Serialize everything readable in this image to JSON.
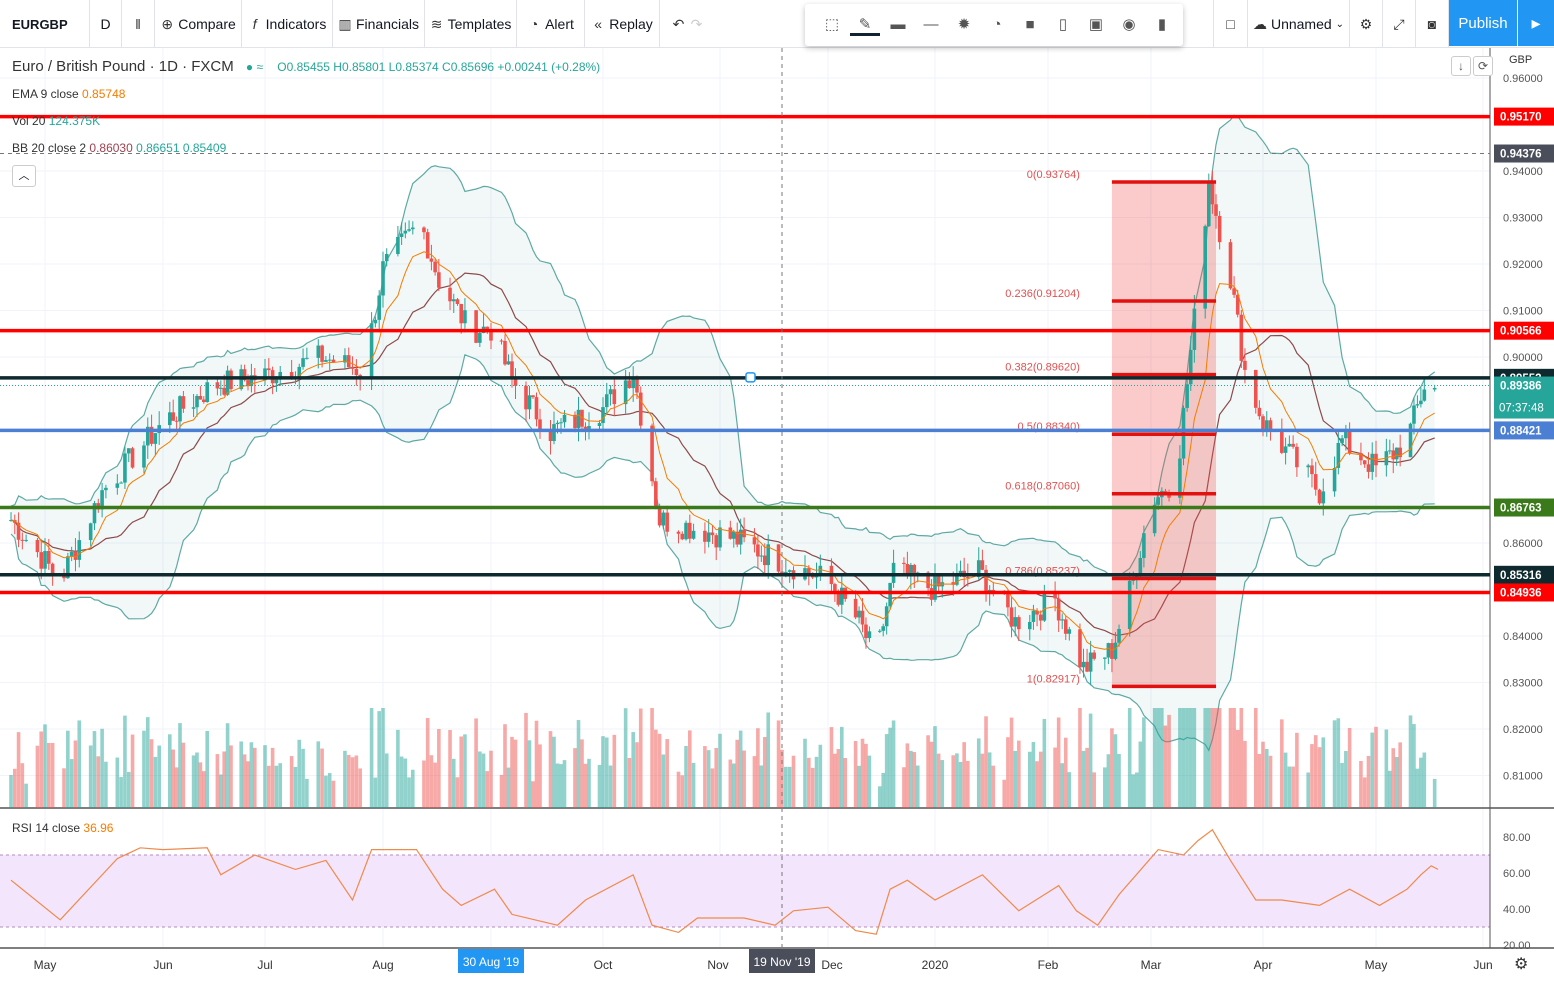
{
  "toolbar": {
    "symbol": "EURGBP",
    "interval": "D",
    "compare": "Compare",
    "indicators": "Indicators",
    "financials": "Financials",
    "templates": "Templates",
    "alert": "Alert",
    "replay": "Replay",
    "layout_name": "Unnamed",
    "publish": "Publish"
  },
  "drawing_toolbar": {
    "icons": [
      "select-icon",
      "pencil-icon",
      "line-weight-icon",
      "line-style-icon",
      "settings-icon",
      "alert-add-icon",
      "fill-icon",
      "template-icon",
      "lock-icon",
      "eye-icon",
      "trash-icon"
    ]
  },
  "legend": {
    "title": "Euro / British Pound · 1D · FXCM",
    "ohlc": "O0.85455 H0.85801 L0.85374 C0.85696 +0.00241 (+0.28%)",
    "ema_label": "EMA 9 close",
    "ema_value": "0.85748",
    "vol_label": "Vol 20",
    "vol_value": "124.375K",
    "bb_label": "BB 20 close 2",
    "bb_basis": "0.86030",
    "bb_upper": "0.86651",
    "bb_lower": "0.85409",
    "rsi_label": "RSI 14 close",
    "rsi_value": "36.96"
  },
  "price_axis": {
    "currency": "GBP"
  },
  "colors": {
    "up": "#26a69a",
    "down": "#ef5350",
    "accent": "#2196f3",
    "ema": "#f57c00",
    "basis": "#8d4a4a",
    "band": "#5ea9a4",
    "rsi": "#f08a4b"
  },
  "chart_data": [
    {
      "type": "candlestick",
      "title": "Euro / British Pound · 1D · FXCM",
      "ylim": [
        0.805,
        0.965
      ],
      "y_ticks": [
        "0.96000",
        "0.94000",
        "0.93000",
        "0.92000",
        "0.91000",
        "0.90000",
        "0.86000",
        "0.84000",
        "0.83000",
        "0.82000",
        "0.81000"
      ],
      "x_ticks": [
        "May",
        "Jun",
        "Jul",
        "Aug",
        "Oct",
        "Nov",
        "Dec",
        "2020",
        "Feb",
        "Mar",
        "Apr",
        "May",
        "Jun"
      ],
      "x_highlight": [
        "30 Aug '19",
        "19 Nov '19"
      ],
      "grid": true,
      "approx_close": [
        [
          "2019-04-22",
          0.865
        ],
        [
          "2019-05-05",
          0.852
        ],
        [
          "2019-05-16",
          0.871
        ],
        [
          "2019-06-01",
          0.886
        ],
        [
          "2019-06-16",
          0.894
        ],
        [
          "2019-07-01",
          0.896
        ],
        [
          "2019-07-16",
          0.9
        ],
        [
          "2019-07-27",
          0.897
        ],
        [
          "2019-08-01",
          0.919
        ],
        [
          "2019-08-11",
          0.929
        ],
        [
          "2019-08-16",
          0.9166
        ],
        [
          "2019-08-24",
          0.906
        ],
        [
          "2019-08-30",
          0.906
        ],
        [
          "2019-09-05",
          0.895
        ],
        [
          "2019-09-16",
          0.884
        ],
        [
          "2019-10-01",
          0.889
        ],
        [
          "2019-10-09",
          0.897
        ],
        [
          "2019-10-16",
          0.865
        ],
        [
          "2019-10-26",
          0.863
        ],
        [
          "2019-11-05",
          0.861
        ],
        [
          "2019-11-19",
          0.856
        ],
        [
          "2019-12-01",
          0.852
        ],
        [
          "2019-12-10",
          0.843
        ],
        [
          "2019-12-15",
          0.835
        ],
        [
          "2019-12-20",
          0.854
        ],
        [
          "2020-01-01",
          0.85
        ],
        [
          "2020-01-13",
          0.854
        ],
        [
          "2020-01-23",
          0.843
        ],
        [
          "2020-02-03",
          0.848
        ],
        [
          "2020-02-11",
          0.833
        ],
        [
          "2020-02-19",
          0.837
        ],
        [
          "2020-02-25",
          0.852
        ],
        [
          "2020-03-01",
          0.869
        ],
        [
          "2020-03-08",
          0.874
        ],
        [
          "2020-03-13",
          0.908
        ],
        [
          "2020-03-17",
          0.938
        ],
        [
          "2020-03-23",
          0.917
        ],
        [
          "2020-03-27",
          0.897
        ],
        [
          "2020-04-01",
          0.886
        ],
        [
          "2020-04-11",
          0.876
        ],
        [
          "2020-04-16",
          0.871
        ],
        [
          "2020-04-22",
          0.882
        ],
        [
          "2020-05-01",
          0.876
        ],
        [
          "2020-05-10",
          0.882
        ],
        [
          "2020-05-15",
          0.894
        ],
        [
          "2020-05-18",
          0.893
        ]
      ],
      "horizontal_lines": [
        {
          "price": 0.9517,
          "label": "0.95170",
          "color": "#ff0000"
        },
        {
          "price": 0.90566,
          "label": "0.90566",
          "color": "#ff0000"
        },
        {
          "price": 0.89552,
          "label": "0.89552",
          "color": "#0f2a2e"
        },
        {
          "price": 0.88421,
          "label": "0.88421",
          "color": "#4a7fd4"
        },
        {
          "price": 0.86763,
          "label": "0.86763",
          "color": "#3a7a1a"
        },
        {
          "price": 0.85316,
          "label": "0.85316",
          "color": "#0f2a2e"
        },
        {
          "price": 0.84936,
          "label": "0.84936",
          "color": "#ff0000"
        }
      ],
      "crosshair": {
        "price": 0.94376,
        "label": "0.94376",
        "date": "19 Nov '19"
      },
      "last_price": {
        "label": "0.89386",
        "countdown": "07:37:48"
      },
      "fibonacci": {
        "from": "2020-02-19",
        "to": "2020-03-19",
        "levels": [
          {
            "ratio": "0",
            "price": 0.93764,
            "label": "0(0.93764)"
          },
          {
            "ratio": "0.236",
            "price": 0.91204,
            "label": "0.236(0.91204)"
          },
          {
            "ratio": "0.382",
            "price": 0.8962,
            "label": "0.382(0.89620)"
          },
          {
            "ratio": "0.5",
            "price": 0.8834,
            "label": "0.5(0.88340)"
          },
          {
            "ratio": "0.618",
            "price": 0.8706,
            "label": "0.618(0.87060)"
          },
          {
            "ratio": "0.786",
            "price": 0.85237,
            "label": "0.786(0.85237)"
          },
          {
            "ratio": "1",
            "price": 0.82917,
            "label": "1(0.82917)"
          }
        ]
      },
      "indicators": [
        "EMA 9",
        "Bollinger Bands 20 2",
        "Volume 20"
      ]
    },
    {
      "type": "line",
      "title": "RSI 14 close",
      "ylim": [
        20,
        90
      ],
      "y_ticks": [
        "80.00",
        "60.00",
        "40.00",
        "20.00"
      ],
      "bands": [
        30,
        70
      ],
      "values": [
        [
          "2019-04-22",
          56
        ],
        [
          "2019-05-05",
          34
        ],
        [
          "2019-05-20",
          68
        ],
        [
          "2019-05-26",
          74
        ],
        [
          "2019-06-01",
          73
        ],
        [
          "2019-06-14",
          74
        ],
        [
          "2019-06-18",
          59
        ],
        [
          "2019-06-28",
          70
        ],
        [
          "2019-07-09",
          62
        ],
        [
          "2019-07-17",
          67
        ],
        [
          "2019-07-24",
          45
        ],
        [
          "2019-07-29",
          73
        ],
        [
          "2019-08-10",
          73
        ],
        [
          "2019-08-17",
          51
        ],
        [
          "2019-08-22",
          42
        ],
        [
          "2019-08-31",
          51
        ],
        [
          "2019-09-05",
          37
        ],
        [
          "2019-09-18",
          31
        ],
        [
          "2019-09-26",
          45
        ],
        [
          "2019-10-09",
          59
        ],
        [
          "2019-10-14",
          31
        ],
        [
          "2019-10-21",
          27
        ],
        [
          "2019-10-26",
          35
        ],
        [
          "2019-11-08",
          35
        ],
        [
          "2019-11-17",
          31
        ],
        [
          "2019-11-22",
          39
        ],
        [
          "2019-12-01",
          41
        ],
        [
          "2019-12-09",
          28
        ],
        [
          "2019-12-15",
          26
        ],
        [
          "2019-12-19",
          51
        ],
        [
          "2019-12-24",
          56
        ],
        [
          "2020-01-01",
          45
        ],
        [
          "2020-01-14",
          59
        ],
        [
          "2020-01-24",
          39
        ],
        [
          "2020-02-04",
          53
        ],
        [
          "2020-02-09",
          39
        ],
        [
          "2020-02-15",
          31
        ],
        [
          "2020-02-21",
          48
        ],
        [
          "2020-03-03",
          73
        ],
        [
          "2020-03-10",
          70
        ],
        [
          "2020-03-14",
          78
        ],
        [
          "2020-03-18",
          84
        ],
        [
          "2020-03-23",
          67
        ],
        [
          "2020-03-30",
          45
        ],
        [
          "2020-04-06",
          45
        ],
        [
          "2020-04-16",
          42
        ],
        [
          "2020-04-24",
          51
        ],
        [
          "2020-05-02",
          42
        ],
        [
          "2020-05-10",
          51
        ],
        [
          "2020-05-14",
          59
        ],
        [
          "2020-05-17",
          64
        ],
        [
          "2020-05-19",
          62
        ]
      ]
    }
  ]
}
